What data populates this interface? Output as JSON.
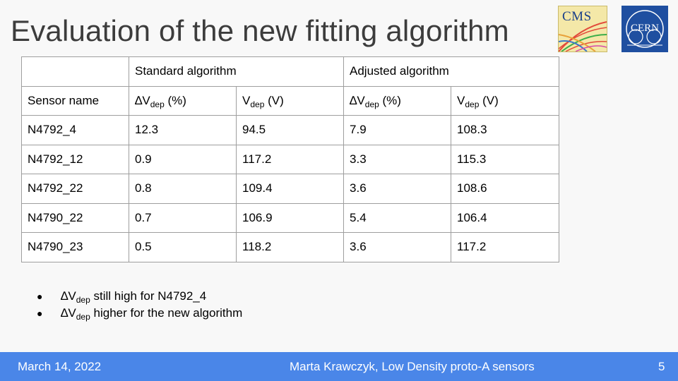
{
  "slide": {
    "title": "Evaluation of the new fitting algorithm"
  },
  "logos": {
    "cms": "CMS",
    "cern": "CERN"
  },
  "table": {
    "group_headers": [
      "",
      "Standard algorithm",
      "Adjusted algorithm"
    ],
    "column_headers": {
      "sensor": "Sensor name",
      "delta_symbol": "∆V",
      "v_symbol": "V",
      "dep_sub": "dep",
      "delta_unit": " (%)",
      "v_unit": " (V)"
    },
    "rows": [
      [
        "N4792_4",
        "12.3",
        "94.5",
        "7.9",
        "108.3"
      ],
      [
        "N4792_12",
        "0.9",
        "117.2",
        "3.3",
        "115.3"
      ],
      [
        "N4792_22",
        "0.8",
        "109.4",
        "3.6",
        "108.6"
      ],
      [
        "N4790_22",
        "0.7",
        "106.9",
        "5.4",
        "106.4"
      ],
      [
        "N4790_23",
        "0.5",
        "118.2",
        "3.6",
        "117.2"
      ]
    ]
  },
  "bullets": [
    {
      "prefix": "∆V",
      "sub": "dep",
      "text": " still high for N4792_4"
    },
    {
      "prefix": "∆V",
      "sub": "dep",
      "text": " higher for the new algorithm"
    }
  ],
  "footer": {
    "date": "March 14, 2022",
    "author": "Marta Krawczyk, Low Density proto-A sensors",
    "page": "5"
  },
  "colors": {
    "footer_bg": "#4a86e8",
    "title": "#3c3c3c",
    "cern_blue": "#1f4fa0"
  }
}
